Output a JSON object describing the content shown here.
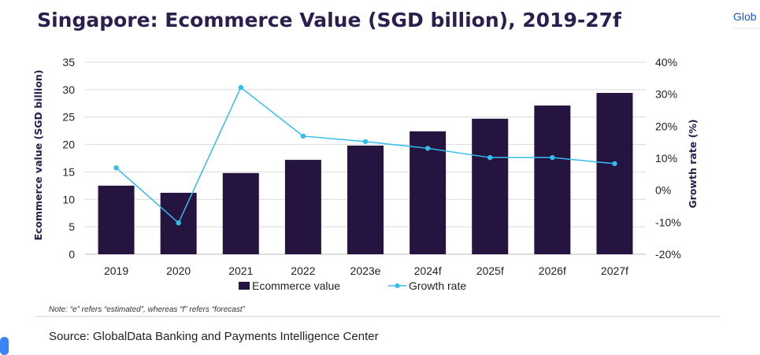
{
  "chart_data": {
    "type": "bar",
    "title": "Singapore: Ecommerce Value (SGD billion), 2019-27f",
    "categories": [
      "2019",
      "2020",
      "2021",
      "2022",
      "2023e",
      "2024f",
      "2025f",
      "2026f",
      "2027f"
    ],
    "series": [
      {
        "name": "Ecommerce value",
        "type": "bar",
        "axis": "left",
        "color": "#24143f",
        "values": [
          12.5,
          11.2,
          14.8,
          17.2,
          19.8,
          22.4,
          24.7,
          27.1,
          29.4
        ]
      },
      {
        "name": "Growth rate",
        "type": "line",
        "axis": "right",
        "color": "#33bdee",
        "values": [
          7.0,
          -10.2,
          32.1,
          16.9,
          15.2,
          13.1,
          10.2,
          10.2,
          8.3
        ]
      }
    ],
    "ylabel": "Ecommerce value (SGD billion)",
    "y2label": "Growth rate (%)",
    "ylim": [
      0,
      35
    ],
    "y2lim": [
      -20,
      40
    ],
    "yticks": [
      "0",
      "5",
      "10",
      "15",
      "20",
      "25",
      "30",
      "35"
    ],
    "y2ticks": [
      "-20%",
      "-10%",
      "0%",
      "10%",
      "20%",
      "30%",
      "40%"
    ],
    "grid": true,
    "legend": "bottom"
  },
  "note": "Note: “e” refers “estimated”, whereas “f” refers “forecast”",
  "source": "Source: GlobalData Banking and Payments Intelligence Center",
  "side_link_fragment": "Glob"
}
